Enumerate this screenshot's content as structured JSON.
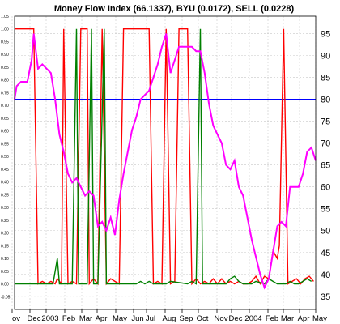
{
  "chart_data": {
    "type": "line",
    "title": "Money Flow Index (66.1337), BYU (0.0172), SELL (0.0228)",
    "right_axis": {
      "ticks": [
        "95",
        "90",
        "85",
        "80",
        "75",
        "70",
        "65",
        "60",
        "55",
        "50",
        "45",
        "40",
        "35"
      ],
      "ylim": [
        32,
        99
      ]
    },
    "left_axis": {
      "ticks": [
        "1.05",
        "1.00",
        "0.95",
        "0.90",
        "0.85",
        "0.80",
        "0.75",
        "0.70",
        "0.65",
        "0.60",
        "0.55",
        "0.50",
        "0.45",
        "0.40",
        "0.35",
        "0.30",
        "0.25",
        "0.20",
        "0.15",
        "0.10",
        "0.05",
        "0.00",
        "-0.05"
      ],
      "ylim": [
        -0.1,
        1.05
      ]
    },
    "x_labels": [
      "ov",
      "Dec",
      "2003",
      "Feb",
      "Mar",
      "Apr",
      "May",
      "Jun",
      "Jul",
      "Aug",
      "Sep",
      "Oct",
      "Nov",
      "Dec",
      "2004",
      "Feb",
      "Mar",
      "Apr",
      "May"
    ],
    "reference_line": {
      "value": 80,
      "color": "#0000ff"
    },
    "grid": true,
    "series": [
      {
        "name": "Money Flow Index",
        "axis": "right",
        "color": "#ff00ff",
        "points": [
          [
            0,
            80
          ],
          [
            1,
            83
          ],
          [
            3,
            84
          ],
          [
            6,
            84
          ],
          [
            8,
            89
          ],
          [
            9,
            95
          ],
          [
            11,
            87
          ],
          [
            13,
            88
          ],
          [
            15,
            87
          ],
          [
            17,
            86
          ],
          [
            19,
            80
          ],
          [
            21,
            72
          ],
          [
            23,
            68
          ],
          [
            25,
            63
          ],
          [
            27,
            61
          ],
          [
            29,
            62
          ],
          [
            31,
            60
          ],
          [
            33,
            58
          ],
          [
            35,
            59
          ],
          [
            37,
            58
          ],
          [
            39,
            51
          ],
          [
            41,
            52
          ],
          [
            43,
            50
          ],
          [
            45,
            53
          ],
          [
            47,
            49
          ],
          [
            49,
            57
          ],
          [
            51,
            63
          ],
          [
            53,
            68
          ],
          [
            55,
            73
          ],
          [
            57,
            76
          ],
          [
            59,
            80
          ],
          [
            61,
            81
          ],
          [
            63,
            82
          ],
          [
            65,
            85
          ],
          [
            67,
            88
          ],
          [
            69,
            92
          ],
          [
            71,
            95
          ],
          [
            73,
            86
          ],
          [
            75,
            89
          ],
          [
            77,
            92
          ],
          [
            79,
            92
          ],
          [
            81,
            92
          ],
          [
            83,
            92
          ],
          [
            85,
            91
          ],
          [
            87,
            91
          ],
          [
            89,
            86
          ],
          [
            91,
            79
          ],
          [
            93,
            74
          ],
          [
            95,
            72
          ],
          [
            97,
            70
          ],
          [
            99,
            65
          ],
          [
            101,
            64
          ],
          [
            103,
            66
          ],
          [
            105,
            60
          ],
          [
            107,
            58
          ],
          [
            109,
            53
          ],
          [
            111,
            48
          ],
          [
            113,
            44
          ],
          [
            115,
            40
          ],
          [
            117,
            37
          ],
          [
            119,
            39
          ],
          [
            121,
            45
          ],
          [
            123,
            51
          ],
          [
            125,
            52
          ],
          [
            127,
            51
          ],
          [
            129,
            60
          ],
          [
            131,
            60
          ],
          [
            133,
            60
          ],
          [
            135,
            63
          ],
          [
            137,
            68
          ],
          [
            139,
            69
          ],
          [
            141,
            66
          ]
        ]
      },
      {
        "name": "BYU",
        "axis": "left",
        "color": "#ff0000",
        "points": [
          [
            0,
            1.0
          ],
          [
            9,
            1.0
          ],
          [
            11,
            0.0
          ],
          [
            13,
            0.01
          ],
          [
            15,
            0.0
          ],
          [
            17,
            0.01
          ],
          [
            19,
            0.0
          ],
          [
            20,
            0.02
          ],
          [
            22,
            0.0
          ],
          [
            23,
            1.0
          ],
          [
            25,
            0.0
          ],
          [
            27,
            0.01
          ],
          [
            29,
            0.0
          ],
          [
            31,
            1.0
          ],
          [
            34,
            1.0
          ],
          [
            35,
            0.0
          ],
          [
            37,
            0.02
          ],
          [
            39,
            0.0
          ],
          [
            41,
            1.0
          ],
          [
            43,
            0.0
          ],
          [
            45,
            0.02
          ],
          [
            47,
            0.01
          ],
          [
            49,
            0.0
          ],
          [
            51,
            1.0
          ],
          [
            63,
            1.0
          ],
          [
            65,
            0.0
          ],
          [
            67,
            0.01
          ],
          [
            69,
            0.0
          ],
          [
            71,
            1.0
          ],
          [
            73,
            0.0
          ],
          [
            75,
            0.01
          ],
          [
            77,
            1.0
          ],
          [
            81,
            1.0
          ],
          [
            83,
            0.0
          ],
          [
            85,
            0.02
          ],
          [
            87,
            0.0
          ],
          [
            89,
            0.01
          ],
          [
            91,
            0.0
          ],
          [
            93,
            0.02
          ],
          [
            95,
            0.0
          ],
          [
            97,
            0.02
          ],
          [
            99,
            0.0
          ],
          [
            101,
            0.01
          ],
          [
            103,
            0.0
          ],
          [
            105,
            0.01
          ],
          [
            107,
            0.0
          ],
          [
            109,
            0.0
          ],
          [
            111,
            0.01
          ],
          [
            113,
            0.03
          ],
          [
            115,
            0.0
          ],
          [
            117,
            0.03
          ],
          [
            119,
            0.02
          ],
          [
            121,
            0.13
          ],
          [
            123,
            0.1
          ],
          [
            124,
            0.15
          ],
          [
            126,
            1.0
          ],
          [
            128,
            0.0
          ],
          [
            130,
            0.01
          ],
          [
            132,
            0.02
          ],
          [
            134,
            0.0
          ],
          [
            136,
            0.02
          ],
          [
            138,
            0.03
          ],
          [
            140,
            0.01
          ]
        ]
      },
      {
        "name": "SELL",
        "axis": "left",
        "color": "#008000",
        "points": [
          [
            0,
            0.0
          ],
          [
            18,
            0.0
          ],
          [
            20,
            0.1
          ],
          [
            21,
            0.0
          ],
          [
            27,
            0.0
          ],
          [
            29,
            1.0
          ],
          [
            30,
            0.0
          ],
          [
            34,
            0.0
          ],
          [
            36,
            1.0
          ],
          [
            37,
            0.0
          ],
          [
            39,
            0.0
          ],
          [
            42,
            1.0
          ],
          [
            43,
            0.0
          ],
          [
            57,
            0.0
          ],
          [
            59,
            0.01
          ],
          [
            61,
            0.0
          ],
          [
            63,
            0.01
          ],
          [
            65,
            0.0
          ],
          [
            71,
            0.0
          ],
          [
            73,
            0.01
          ],
          [
            81,
            0.0
          ],
          [
            83,
            0.01
          ],
          [
            85,
            0.0
          ],
          [
            87,
            1.0
          ],
          [
            88,
            0.0
          ],
          [
            99,
            0.0
          ],
          [
            101,
            0.02
          ],
          [
            103,
            0.03
          ],
          [
            105,
            0.01
          ],
          [
            107,
            0.0
          ],
          [
            111,
            0.0
          ],
          [
            113,
            0.01
          ],
          [
            117,
            0.0
          ],
          [
            119,
            0.02
          ],
          [
            121,
            0.01
          ],
          [
            123,
            0.0
          ],
          [
            127,
            0.0
          ],
          [
            129,
            0.01
          ],
          [
            131,
            0.0
          ],
          [
            133,
            0.0
          ],
          [
            135,
            0.01
          ],
          [
            137,
            0.02
          ],
          [
            139,
            0.01
          ]
        ]
      }
    ]
  }
}
